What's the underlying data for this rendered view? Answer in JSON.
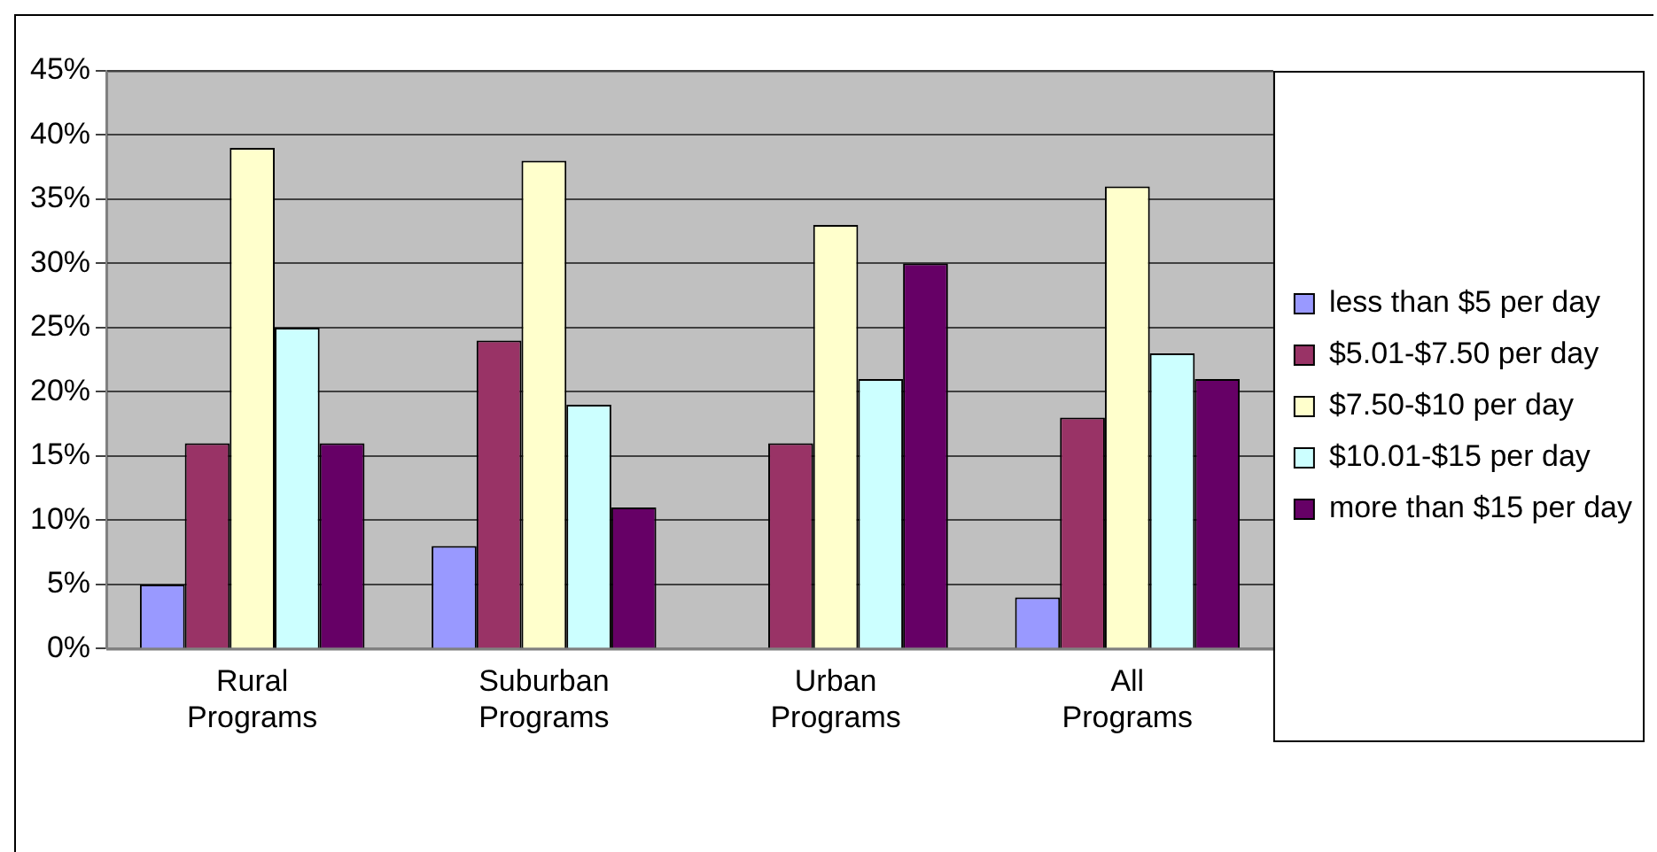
{
  "chart_data": {
    "type": "bar",
    "categories": [
      "Rural Programs",
      "Suburban Programs",
      "Urban Programs",
      "All Programs"
    ],
    "series": [
      {
        "name": "less than $5 per day",
        "color": "#9999ff",
        "values": [
          5,
          8,
          0,
          4
        ]
      },
      {
        "name": "$5.01-$7.50 per day",
        "color": "#993366",
        "values": [
          16,
          24,
          16,
          18
        ]
      },
      {
        "name": "$7.50-$10 per day",
        "color": "#ffffcc",
        "values": [
          39,
          38,
          33,
          36
        ]
      },
      {
        "name": "$10.01-$15 per day",
        "color": "#ccffff",
        "values": [
          25,
          19,
          21,
          23
        ]
      },
      {
        "name": "more than $15 per day",
        "color": "#660066",
        "values": [
          16,
          11,
          30,
          21
        ]
      }
    ],
    "ylim": [
      0,
      45
    ],
    "yticks": [
      {
        "value": 0,
        "label": "0%"
      },
      {
        "value": 5,
        "label": "5%"
      },
      {
        "value": 10,
        "label": "10%"
      },
      {
        "value": 15,
        "label": "15%"
      },
      {
        "value": 20,
        "label": "20%"
      },
      {
        "value": 25,
        "label": "25%"
      },
      {
        "value": 30,
        "label": "30%"
      },
      {
        "value": 35,
        "label": "35%"
      },
      {
        "value": 40,
        "label": "40%"
      },
      {
        "value": 45,
        "label": "45%"
      }
    ],
    "grid": "y",
    "legend": "right"
  }
}
